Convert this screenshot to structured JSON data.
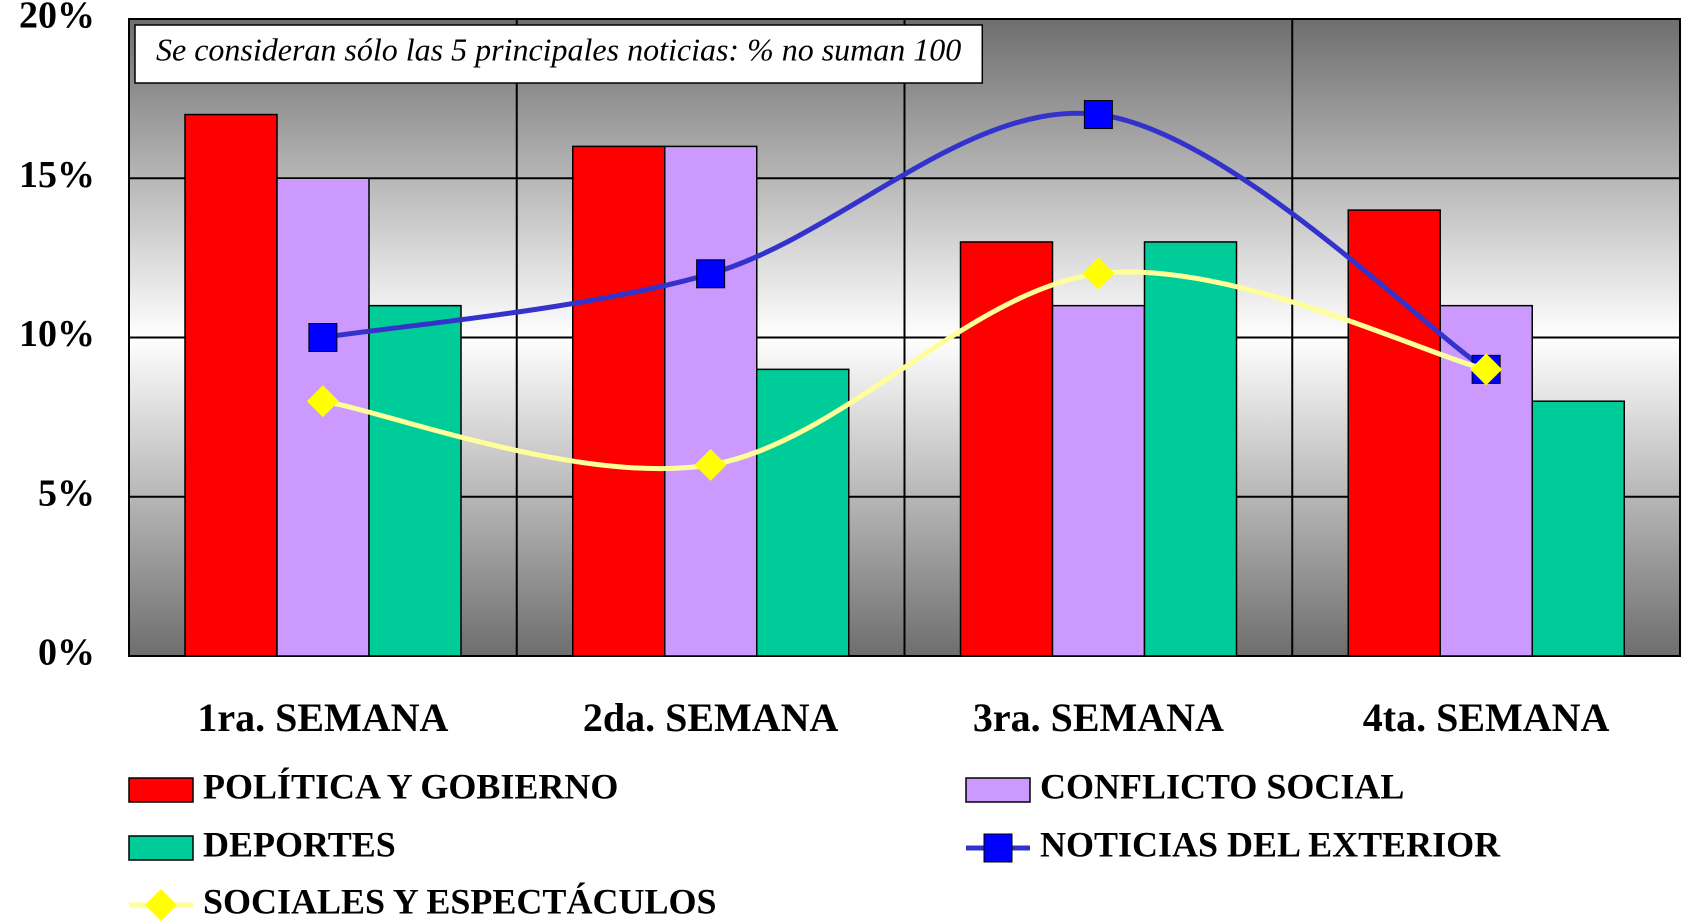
{
  "chart_data": {
    "type": "bar",
    "annotation": "Se consideran sólo las 5 principales noticias: % no suman 100",
    "categories": [
      "1ra. SEMANA",
      "2da. SEMANA",
      "3ra. SEMANA",
      "4ta. SEMANA"
    ],
    "series": [
      {
        "name": "POLÍTICA Y GOBIERNO",
        "color": "#ff0000",
        "values": [
          17,
          16,
          13,
          14
        ]
      },
      {
        "name": "CONFLICTO SOCIAL",
        "color": "#cc99ff",
        "values": [
          15,
          16,
          11,
          11
        ]
      },
      {
        "name": "DEPORTES",
        "color": "#00cc99",
        "values": [
          11,
          9,
          13,
          8
        ]
      },
      {
        "name": "NOTICIAS DEL EXTERIOR",
        "color": "#3333cc",
        "type": "line",
        "marker": "square",
        "marker_color": "#0000ff",
        "values": [
          10,
          12,
          17,
          9
        ]
      },
      {
        "name": "SOCIALES Y ESPECTÁCULOS",
        "color": "#ffff99",
        "type": "line",
        "marker": "diamond",
        "marker_color": "#ffff00",
        "values": [
          8,
          6,
          12,
          9
        ]
      }
    ],
    "ylim": [
      0,
      20
    ],
    "yticks": [
      {
        "value": 0,
        "label": "0%"
      },
      {
        "value": 5,
        "label": "5%"
      },
      {
        "value": 10,
        "label": "10%"
      },
      {
        "value": 15,
        "label": "15%"
      },
      {
        "value": 20,
        "label": "20%"
      }
    ],
    "grid": true
  }
}
